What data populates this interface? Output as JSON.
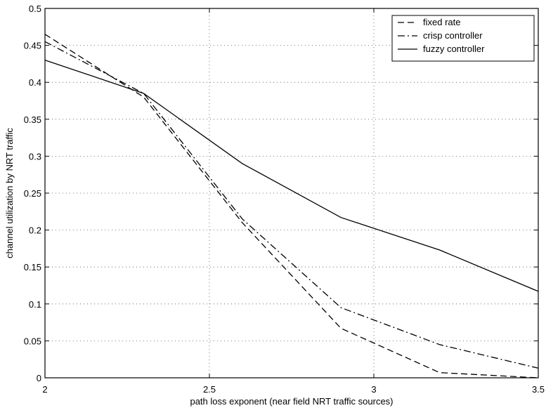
{
  "chart_data": {
    "type": "line",
    "title": "",
    "xlabel": "path loss exponent (near field NRT traffic sources)",
    "ylabel": "channel utilization by NRT traffic",
    "xlim": [
      2,
      3.5
    ],
    "ylim": [
      0,
      0.5
    ],
    "xticks": [
      2,
      2.5,
      3,
      3.5
    ],
    "xtick_labels": [
      "2",
      "2.5",
      "3",
      "3.5"
    ],
    "yticks": [
      0,
      0.05,
      0.1,
      0.15,
      0.2,
      0.25,
      0.3,
      0.35,
      0.4,
      0.45,
      0.5
    ],
    "ytick_labels": [
      "0",
      "0.05",
      "0.1",
      "0.15",
      "0.2",
      "0.25",
      "0.3",
      "0.35",
      "0.4",
      "0.45",
      "0.5"
    ],
    "grid": true,
    "legend_position": "top-right",
    "series": [
      {
        "name": "fixed rate",
        "style": "dashed",
        "x": [
          2.0,
          2.3,
          2.6,
          2.9,
          3.2,
          3.5
        ],
        "y": [
          0.465,
          0.38,
          0.21,
          0.067,
          0.007,
          0.0
        ]
      },
      {
        "name": "crisp controller",
        "style": "dashdot",
        "x": [
          2.0,
          2.3,
          2.6,
          2.9,
          3.2,
          3.5
        ],
        "y": [
          0.455,
          0.385,
          0.215,
          0.095,
          0.045,
          0.013
        ]
      },
      {
        "name": "fuzzy controller",
        "style": "solid",
        "x": [
          2.0,
          2.3,
          2.6,
          2.9,
          3.2,
          3.5
        ],
        "y": [
          0.43,
          0.385,
          0.29,
          0.217,
          0.173,
          0.117
        ]
      }
    ]
  }
}
